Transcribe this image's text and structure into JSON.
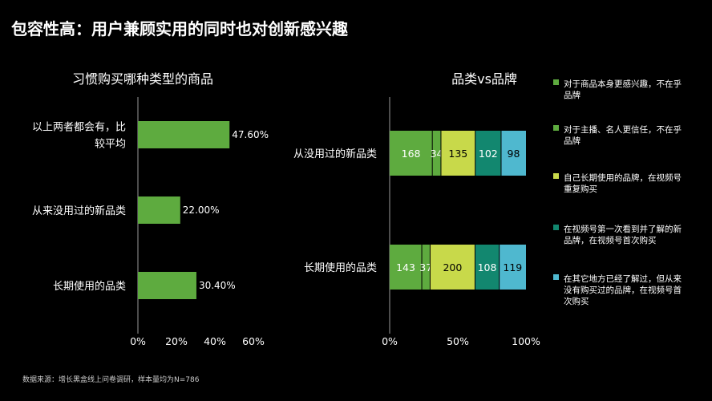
{
  "title": "包容性高：用户兼顾实用的同时也对创新感兴趣",
  "footnote": "数据来源：增长黑盒线上问卷调研，样本量均为N=786",
  "colors": {
    "bar_green": "#5eab3f",
    "teal": "#12876f",
    "yellow_green": "#c8d94a",
    "sky": "#4fb8cf",
    "axis_line": "#9a9a9a"
  },
  "chart_data": [
    {
      "type": "bar",
      "orientation": "horizontal",
      "title": "习惯购买哪种类型的商品",
      "categories": [
        "以上两者都会有，比较平均",
        "从来没用过的新品类",
        "长期使用的品类"
      ],
      "category_lines": [
        [
          "以上两者都会有，比",
          "较平均"
        ],
        [
          "从来没用过的新品类"
        ],
        [
          "长期使用的品类"
        ]
      ],
      "values": [
        47.6,
        22.0,
        30.4
      ],
      "value_labels": [
        "47.60%",
        "22.00%",
        "30.40%"
      ],
      "xlim": [
        0,
        60
      ],
      "xticks": [
        0,
        20,
        40,
        60
      ],
      "xtick_labels": [
        "0%",
        "20%",
        "40%",
        "60%"
      ]
    },
    {
      "type": "bar",
      "orientation": "horizontal",
      "stacked": "percent",
      "title": "品类vs品牌",
      "categories": [
        "从没用过的新品类",
        "长期使用的品类"
      ],
      "series": [
        {
          "name": "对于商品本身更感兴趣，不在乎品牌",
          "values": [
            168,
            143
          ]
        },
        {
          "name": "对于主播、名人更信任，不在乎品牌",
          "values": [
            34,
            37
          ]
        },
        {
          "name": "自己长期使用的品牌，在视频号重复购买",
          "values": [
            135,
            200
          ]
        },
        {
          "name": "在视频号第一次看到并了解的新品牌，在视频号首次购买",
          "values": [
            102,
            108
          ]
        },
        {
          "name": "在其它地方已经了解过，但从来没有购买过的品牌，在视频号首次购买",
          "values": [
            98,
            119
          ]
        }
      ],
      "xlim": [
        0,
        100
      ],
      "xticks": [
        0,
        50,
        100
      ],
      "xtick_labels": [
        "0%",
        "50%",
        "100%"
      ]
    }
  ],
  "legend": [
    {
      "lines": [
        "对于商品本身更感兴趣，不在乎",
        "品牌"
      ],
      "color": "#5eab3f",
      "icon": "square-marker"
    },
    {
      "lines": [
        "对于主播、名人更信任，不在乎",
        "品牌"
      ],
      "color": "#5eab3f",
      "icon": "square-marker"
    },
    {
      "lines": [
        "自己长期使用的品牌，在视频号",
        "重复购买"
      ],
      "color": "#c8d94a",
      "icon": "square-marker"
    },
    {
      "lines": [
        "在视频号第一次看到并了解的新",
        "品牌，在视频号首次购买"
      ],
      "color": "#12876f",
      "icon": "square-marker"
    },
    {
      "lines": [
        "在其它地方已经了解过，但从来",
        "没有购买过的品牌，在视频号首",
        "次购买"
      ],
      "color": "#4fb8cf",
      "icon": "square-marker"
    }
  ]
}
